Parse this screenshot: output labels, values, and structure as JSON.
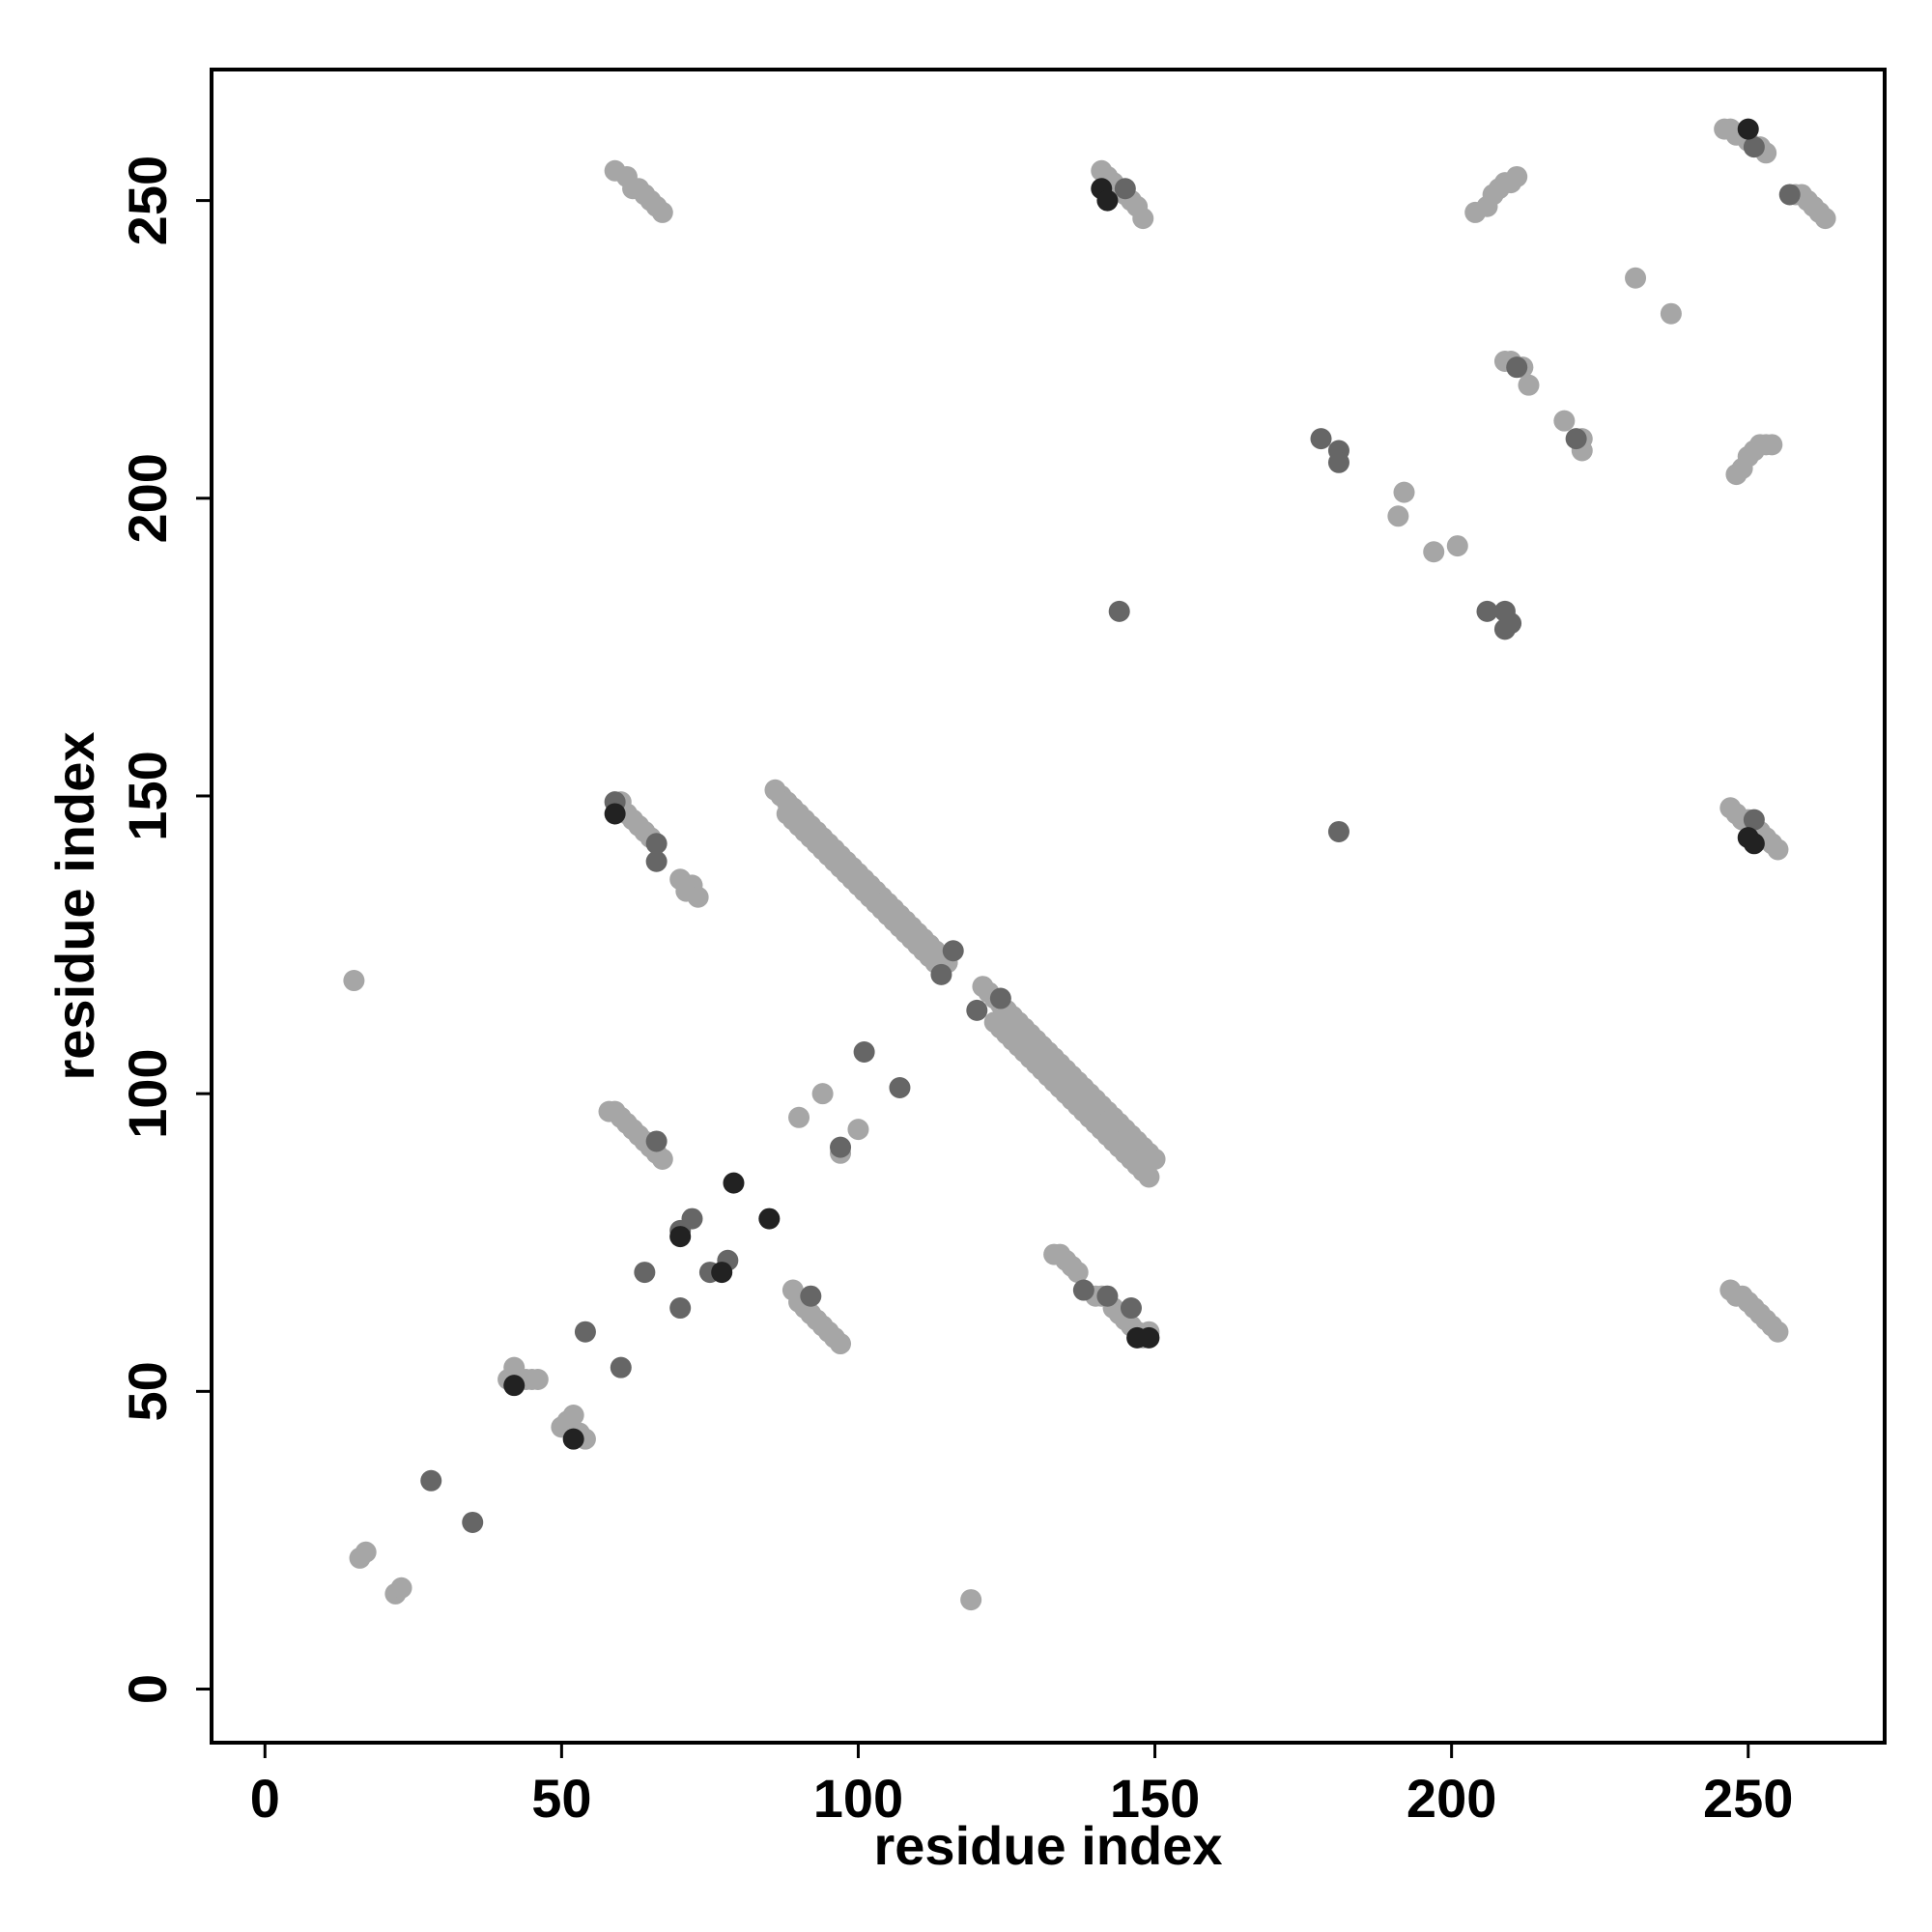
{
  "chart_data": {
    "type": "scatter",
    "x_label": "residue index",
    "y_label": "residue index",
    "xlim": [
      -9,
      273
    ],
    "ylim": [
      -9,
      272
    ],
    "xticks": [
      0,
      50,
      100,
      150,
      200,
      250
    ],
    "yticks": [
      0,
      50,
      100,
      150,
      200,
      250
    ],
    "series": [
      {
        "color": "#a6a6a6",
        "x": [
          15,
          16,
          17,
          22,
          23,
          119,
          41,
          42,
          43,
          44,
          45,
          46,
          50,
          51,
          52,
          53,
          54,
          60,
          61,
          62,
          63,
          64,
          65,
          70,
          71,
          72,
          73,
          58,
          59,
          60,
          61,
          62,
          63,
          64,
          65,
          66,
          67,
          89,
          90,
          91,
          92,
          93,
          94,
          95,
          96,
          97,
          90,
          94,
          100,
          97,
          59,
          61,
          62,
          63,
          64,
          65,
          66,
          67,
          86,
          87,
          88,
          89,
          90,
          91,
          92,
          93,
          94,
          95,
          96,
          97,
          98,
          99,
          100,
          101,
          102,
          103,
          104,
          105,
          106,
          107,
          108,
          109,
          110,
          111,
          112,
          113,
          114,
          115,
          88,
          89,
          90,
          91,
          92,
          93,
          94,
          95,
          96,
          97,
          98,
          99,
          100,
          101,
          102,
          103,
          104,
          105,
          106,
          107,
          108,
          109,
          110,
          111,
          112,
          113,
          114,
          121,
          122,
          123,
          124,
          125,
          126,
          127,
          128,
          129,
          130,
          131,
          132,
          133,
          134,
          135,
          136,
          137,
          138,
          139,
          140,
          141,
          142,
          143,
          144,
          145,
          146,
          147,
          148,
          149,
          150,
          123,
          124,
          125,
          126,
          127,
          128,
          129,
          130,
          131,
          132,
          133,
          134,
          135,
          136,
          137,
          138,
          139,
          140,
          141,
          142,
          143,
          144,
          145,
          146,
          147,
          148,
          149,
          133,
          134,
          135,
          136,
          137,
          140,
          141,
          143,
          144,
          145,
          146,
          147,
          148,
          149,
          141,
          142,
          143,
          144,
          145,
          146,
          147,
          148,
          231,
          237,
          192,
          191,
          197,
          201,
          209,
          210,
          211,
          212,
          213,
          219,
          222,
          222,
          204,
          206,
          207,
          208,
          209,
          210,
          211,
          248,
          249,
          250,
          251,
          252,
          253,
          254,
          246,
          247,
          248,
          249,
          250,
          251,
          252,
          253,
          258,
          259,
          260,
          261,
          262,
          263,
          247,
          248,
          249,
          250,
          251,
          252,
          253,
          254,
          255,
          247,
          248,
          249,
          250,
          251,
          252,
          253,
          254,
          255
        ],
        "values": [
          119,
          22,
          23,
          16,
          17,
          15,
          52,
          54,
          52,
          52,
          52,
          52,
          44,
          45,
          46,
          43,
          42,
          149,
          147,
          146,
          145,
          144,
          143,
          136,
          134,
          135,
          133,
          97,
          97,
          96,
          95,
          94,
          93,
          92,
          91,
          90,
          89,
          67,
          65,
          64,
          63,
          62,
          61,
          60,
          59,
          58,
          96,
          100,
          94,
          90,
          255,
          254,
          252,
          252,
          251,
          250,
          249,
          248,
          151,
          150,
          149,
          148,
          147,
          146,
          145,
          144,
          143,
          142,
          141,
          140,
          139,
          138,
          137,
          136,
          135,
          134,
          133,
          132,
          131,
          130,
          129,
          128,
          127,
          126,
          125,
          124,
          123,
          122,
          147,
          146,
          145,
          144,
          143,
          142,
          141,
          140,
          139,
          138,
          137,
          136,
          135,
          134,
          133,
          132,
          131,
          130,
          129,
          128,
          127,
          126,
          125,
          124,
          123,
          122,
          121,
          118,
          117,
          116,
          115,
          114,
          113,
          112,
          111,
          110,
          109,
          108,
          107,
          106,
          105,
          104,
          103,
          102,
          101,
          100,
          99,
          98,
          97,
          96,
          95,
          94,
          93,
          92,
          91,
          90,
          89,
          112,
          111,
          110,
          109,
          108,
          107,
          106,
          105,
          104,
          103,
          102,
          101,
          100,
          99,
          98,
          97,
          96,
          95,
          94,
          93,
          92,
          91,
          90,
          89,
          88,
          87,
          86,
          73,
          73,
          72,
          71,
          70,
          66,
          66,
          64,
          63,
          62,
          61,
          60,
          59,
          60,
          255,
          254,
          253,
          252,
          251,
          250,
          249,
          247,
          237,
          231,
          201,
          197,
          191,
          192,
          223,
          223,
          222,
          222,
          219,
          213,
          210,
          208,
          248,
          249,
          251,
          252,
          253,
          253,
          254,
          204,
          205,
          207,
          208,
          209,
          209,
          209,
          262,
          262,
          261,
          261,
          260,
          259,
          259,
          258,
          251,
          251,
          250,
          249,
          248,
          247,
          148,
          147,
          146,
          146,
          145,
          144,
          143,
          142,
          141,
          67,
          66,
          66,
          65,
          64,
          63,
          62,
          61,
          60
        ]
      },
      {
        "color": "#666666",
        "x": [
          28,
          35,
          54,
          60,
          64,
          70,
          59,
          66,
          66,
          66,
          92,
          97,
          101,
          107,
          70,
          72,
          75,
          78,
          116,
          114,
          120,
          124,
          144,
          181,
          178,
          181,
          181,
          206,
          209,
          210,
          209,
          211,
          221,
          138,
          142,
          146,
          145,
          257,
          251,
          251
        ],
        "values": [
          35,
          28,
          60,
          54,
          70,
          64,
          149,
          142,
          139,
          92,
          66,
          91,
          107,
          101,
          77,
          79,
          70,
          72,
          124,
          120,
          114,
          116,
          181,
          144,
          210,
          208,
          206,
          181,
          181,
          179,
          178,
          222,
          210,
          67,
          66,
          64,
          252,
          251,
          146,
          259
        ]
      },
      {
        "color": "#222222",
        "x": [
          79,
          85,
          42,
          52,
          59,
          70,
          77,
          141,
          142,
          147,
          149,
          250,
          250,
          251
        ],
        "values": [
          85,
          79,
          51,
          42,
          147,
          76,
          70,
          252,
          250,
          59,
          59,
          262,
          143,
          142
        ]
      }
    ]
  }
}
